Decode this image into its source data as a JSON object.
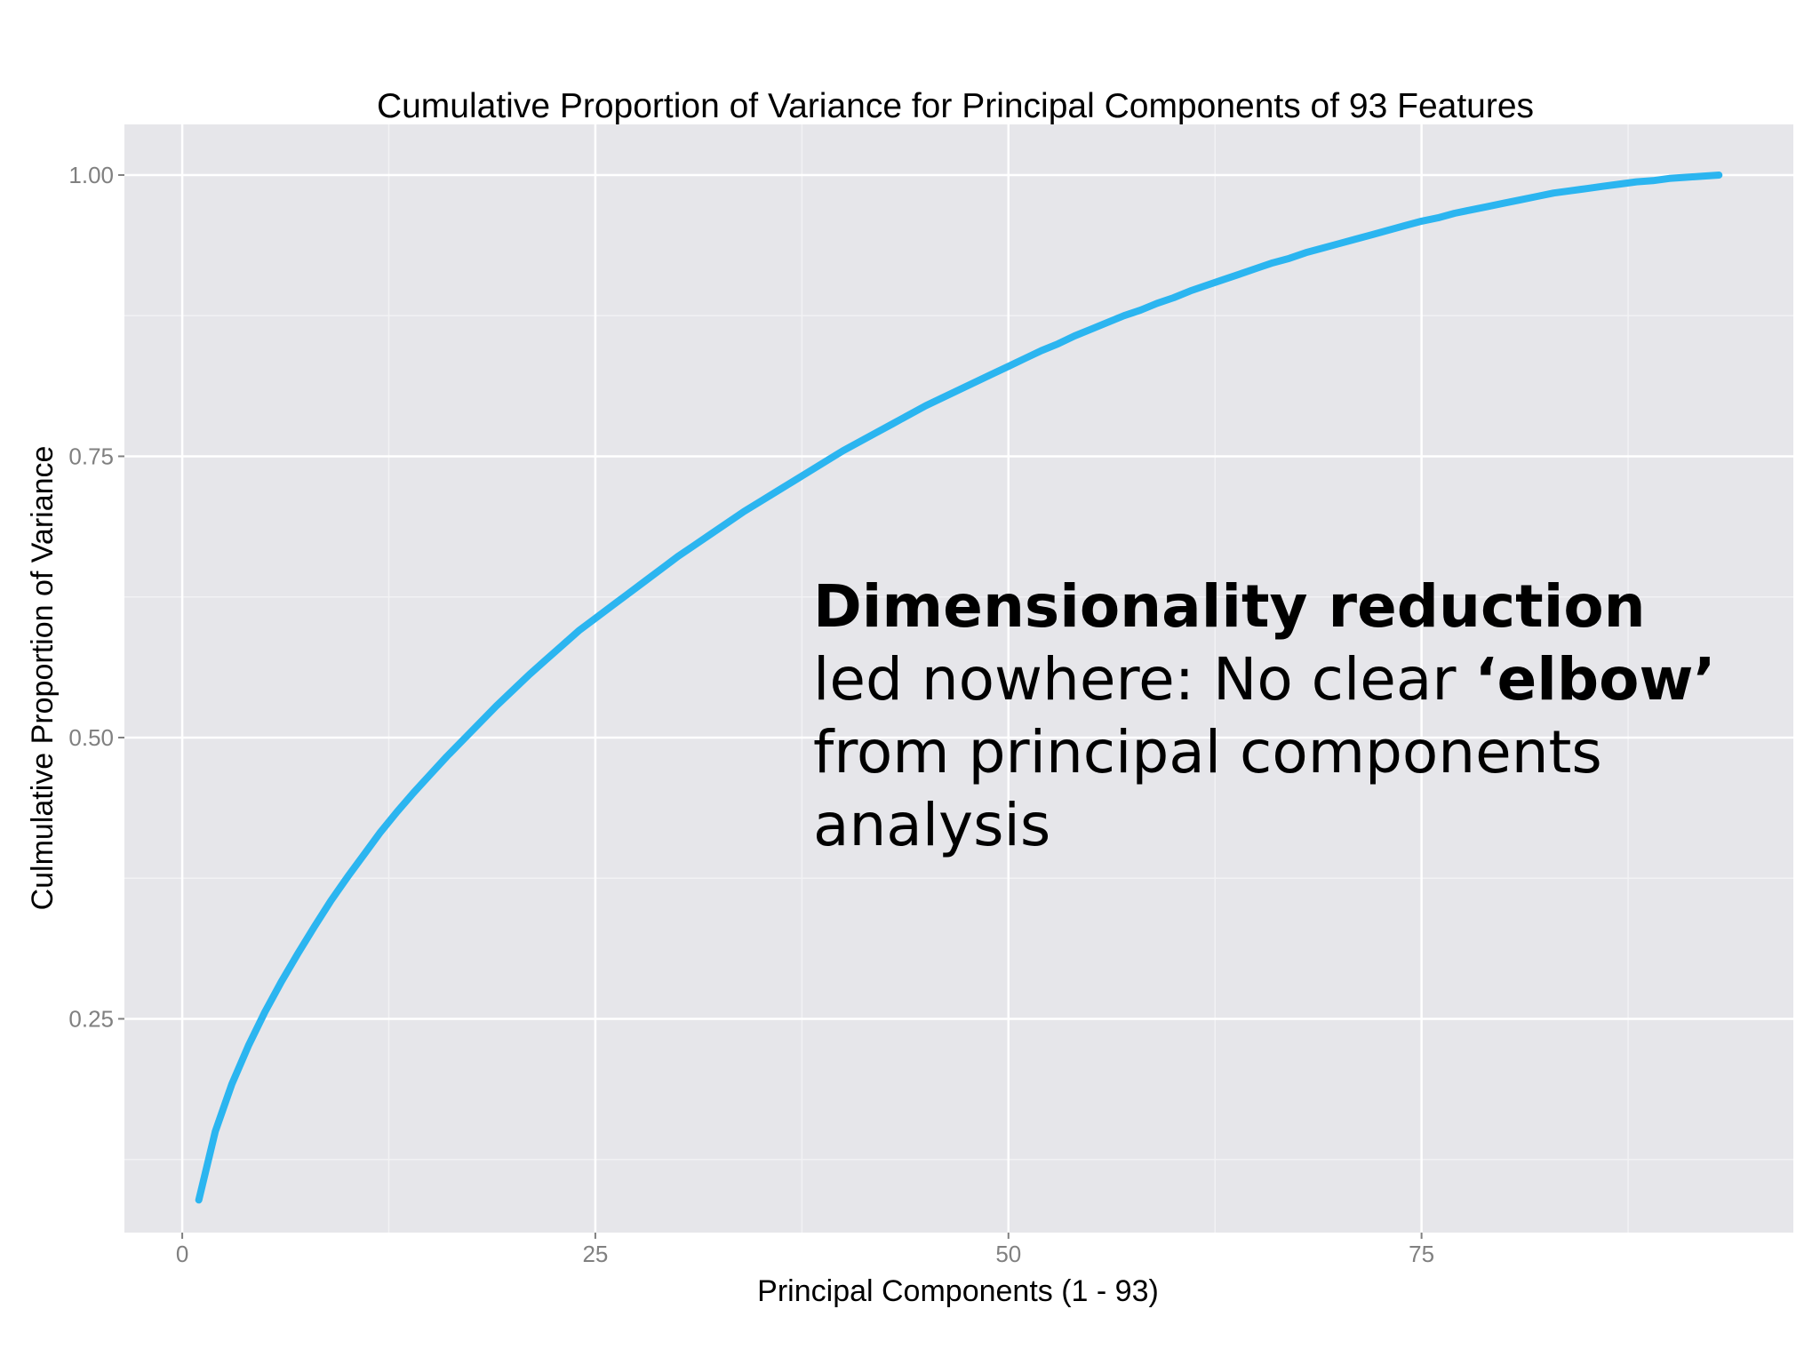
{
  "chart_data": {
    "type": "line",
    "title": "Cumulative Proportion of Variance for Principal Components of 93 Features",
    "xlabel": "Principal Components (1 - 93)",
    "ylabel": "Culmulative Proportion of Variance",
    "xlim": [
      -3.5,
      97.5
    ],
    "ylim": [
      0.06,
      1.045
    ],
    "x_ticks": [
      0,
      25,
      50,
      75
    ],
    "x_tick_labels": [
      "0",
      "25",
      "50",
      "75"
    ],
    "y_ticks": [
      0.25,
      0.5,
      0.75,
      1.0
    ],
    "y_tick_labels": [
      "0.25",
      "0.50",
      "0.75",
      "1.00"
    ],
    "grid": true,
    "legend": "none",
    "colors": {
      "panel_background": "#e6e6ea",
      "grid_major": "#ffffff",
      "grid_minor": "#f2f2f4",
      "line": "#2bb5f0"
    },
    "series": [
      {
        "x": [
          1,
          2,
          3,
          4,
          5,
          6,
          7,
          8,
          9,
          10,
          11,
          12,
          13,
          14,
          15,
          16,
          17,
          18,
          19,
          20,
          21,
          22,
          23,
          24,
          25,
          26,
          27,
          28,
          29,
          30,
          31,
          32,
          33,
          34,
          35,
          36,
          37,
          38,
          39,
          40,
          41,
          42,
          43,
          44,
          45,
          46,
          47,
          48,
          49,
          50,
          51,
          52,
          53,
          54,
          55,
          56,
          57,
          58,
          59,
          60,
          61,
          62,
          63,
          64,
          65,
          66,
          67,
          68,
          69,
          70,
          71,
          72,
          73,
          74,
          75,
          76,
          77,
          78,
          79,
          80,
          81,
          82,
          83,
          84,
          85,
          86,
          87,
          88,
          89,
          90,
          91,
          92,
          93
        ],
        "values": [
          0.089,
          0.15,
          0.192,
          0.226,
          0.256,
          0.283,
          0.308,
          0.332,
          0.355,
          0.376,
          0.396,
          0.416,
          0.434,
          0.451,
          0.467,
          0.483,
          0.498,
          0.513,
          0.528,
          0.542,
          0.556,
          0.569,
          0.582,
          0.595,
          0.606,
          0.617,
          0.628,
          0.639,
          0.65,
          0.661,
          0.671,
          0.681,
          0.691,
          0.701,
          0.71,
          0.719,
          0.728,
          0.737,
          0.746,
          0.755,
          0.763,
          0.771,
          0.779,
          0.787,
          0.795,
          0.802,
          0.809,
          0.816,
          0.823,
          0.83,
          0.837,
          0.844,
          0.85,
          0.857,
          0.863,
          0.869,
          0.875,
          0.88,
          0.886,
          0.891,
          0.897,
          0.902,
          0.907,
          0.912,
          0.917,
          0.922,
          0.926,
          0.931,
          0.935,
          0.939,
          0.943,
          0.947,
          0.951,
          0.955,
          0.959,
          0.962,
          0.966,
          0.969,
          0.972,
          0.975,
          0.978,
          0.981,
          0.984,
          0.986,
          0.988,
          0.99,
          0.992,
          0.994,
          0.995,
          0.997,
          0.998,
          0.999,
          1.0
        ]
      }
    ]
  },
  "annotation": {
    "bold_heading": "Dimensionality reduction",
    "text_part1": "led nowhere: No clear ",
    "bold_word": "‘elbow’",
    "text_part2": "from principal components analysis"
  }
}
